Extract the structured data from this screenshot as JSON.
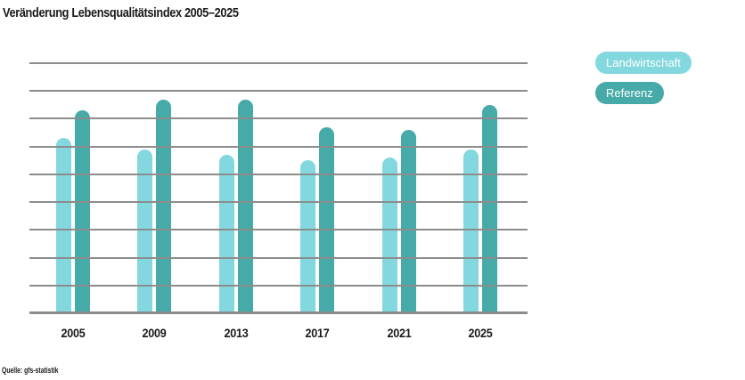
{
  "title": "Veränderung Lebensqualitätsindex 2005–2025",
  "source_note": "Quelle: gfs-statistik",
  "colors": {
    "background": "#ffffff",
    "grid": "#8c8c8c",
    "axis": "#8c8c8c",
    "text": "#1a1a1a",
    "legend_text": "#ffffff",
    "series_landwirtschaft": "#82d8de",
    "series_referenz": "#45aaa8"
  },
  "chart_data": {
    "type": "bar",
    "title": "Veränderung Lebensqualitätsindex 2005–2025",
    "categories": [
      "2005",
      "2009",
      "2013",
      "2017",
      "2021",
      "2025"
    ],
    "series": [
      {
        "name": "Landwirtschaft",
        "color": "#82d8de",
        "values": [
          63,
          59,
          57,
          55,
          56,
          59
        ]
      },
      {
        "name": "Referenz",
        "color": "#45aaa8",
        "values": [
          73,
          77,
          77,
          67,
          66,
          75
        ]
      }
    ],
    "xlabel": "",
    "ylabel": "",
    "ylim": [
      0,
      90
    ],
    "gridline_step": 10,
    "grid": true,
    "y_tick_labels_shown": false,
    "legend_position": "right",
    "legend_style": "rounded-pills",
    "bar_shape": "rounded-top"
  }
}
